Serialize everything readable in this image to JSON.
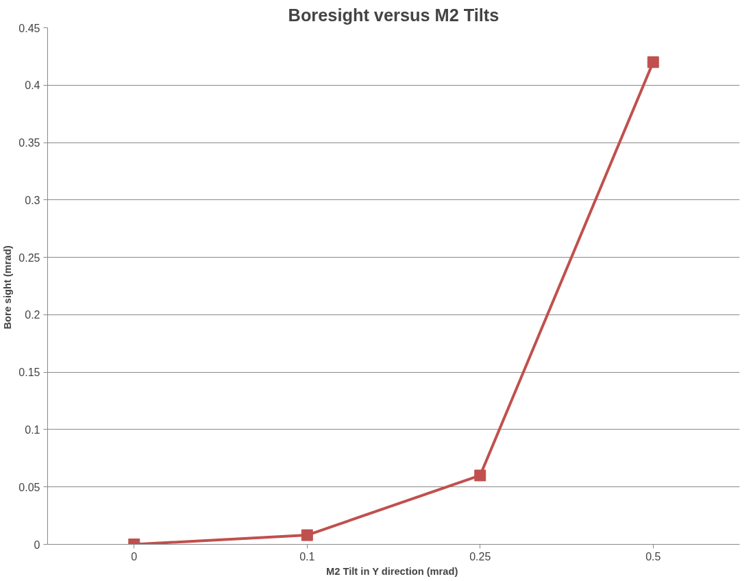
{
  "chart_data": {
    "type": "line",
    "title": "Boresight versus M2 Tilts",
    "xlabel": "M2  Tilt in Y direction (mrad)",
    "ylabel": "Bore sight  (mrad)",
    "categories": [
      "0",
      "0.1",
      "0.25",
      "0.5"
    ],
    "series": [
      {
        "color": "#c0504d",
        "values": [
          0,
          0.008,
          0.06,
          0.42
        ]
      }
    ],
    "ylim": [
      0,
      0.45
    ],
    "yticks": [
      0,
      0.05,
      0.1,
      0.15,
      0.2,
      0.25,
      0.3,
      0.35,
      0.4,
      0.45
    ],
    "grid": "y",
    "marker": "square",
    "line_style": "solid"
  }
}
